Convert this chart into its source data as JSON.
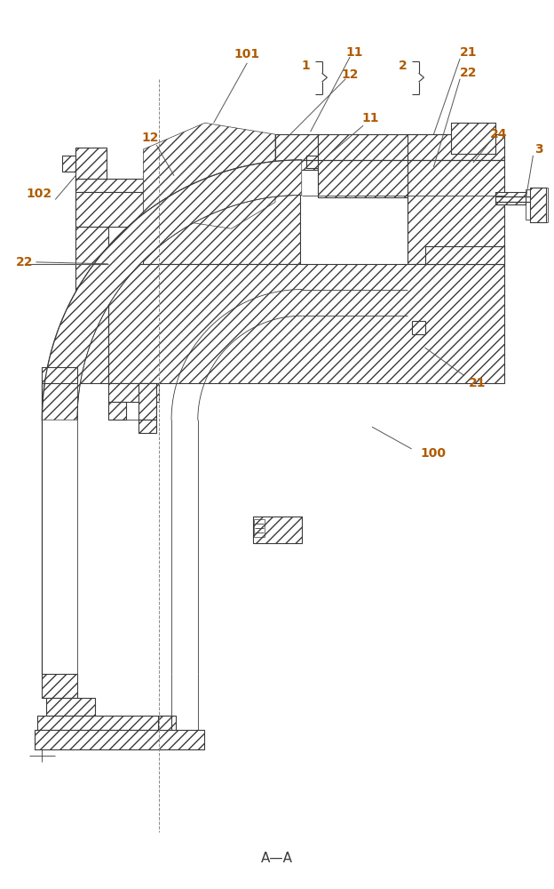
{
  "background": "#ffffff",
  "line_color": "#3a3a3a",
  "label_color": "#b05a00",
  "label_fontsize": 10,
  "fig_width": 6.24,
  "fig_height": 10.0,
  "dpi": 100,
  "title": "A—A"
}
